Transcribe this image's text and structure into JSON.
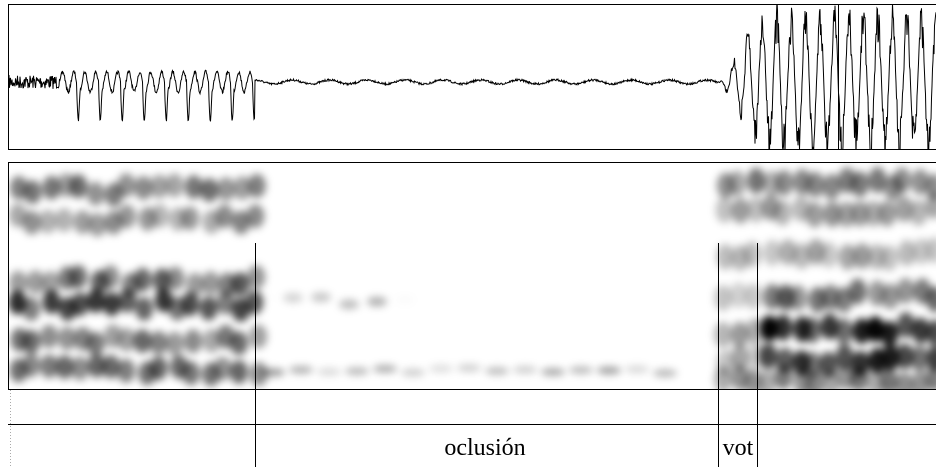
{
  "tier": {
    "labels": [
      "oclusión",
      "vot"
    ]
  }
}
